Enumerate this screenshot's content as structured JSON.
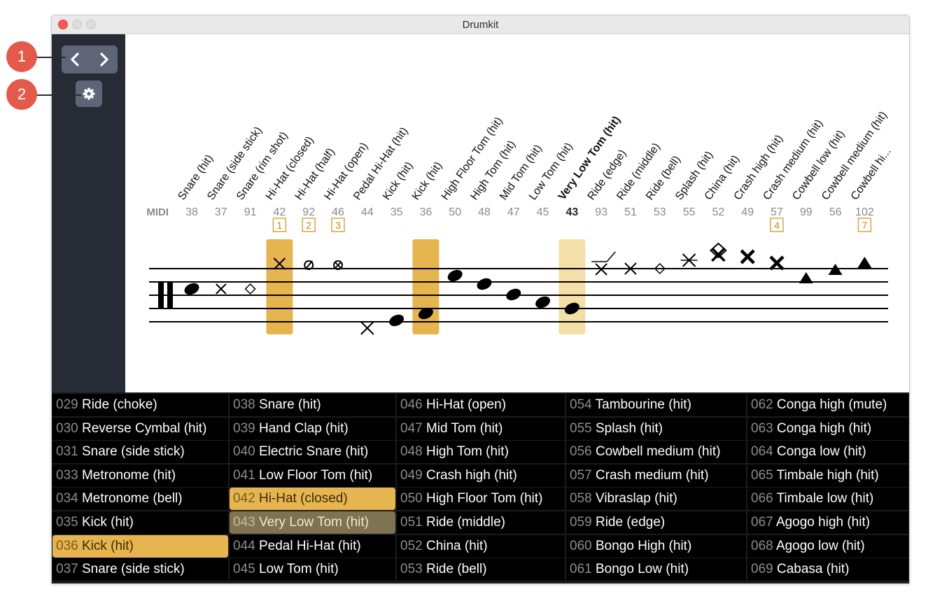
{
  "window": {
    "title": "Drumkit"
  },
  "callouts": [
    "1",
    "2"
  ],
  "sidebar": {
    "prev_icon": "chevron-left-icon",
    "next_icon": "chevron-right-icon",
    "settings_icon": "gear-icon"
  },
  "notation": {
    "midi_label": "MIDI",
    "columns": [
      {
        "name": "Snare (hit)",
        "midi": "38"
      },
      {
        "name": "Snare (side stick)",
        "midi": "37"
      },
      {
        "name": "Snare (rim shot)",
        "midi": "91"
      },
      {
        "name": "Hi-Hat (closed)",
        "midi": "42",
        "badge": "1"
      },
      {
        "name": "Hi-Hat (half)",
        "midi": "92",
        "badge": "2"
      },
      {
        "name": "Hi-Hat (open)",
        "midi": "46",
        "badge": "3"
      },
      {
        "name": "Pedal Hi-Hat (hit)",
        "midi": "44"
      },
      {
        "name": "Kick (hit)",
        "midi": "35"
      },
      {
        "name": "Kick (hit)",
        "midi": "36"
      },
      {
        "name": "High Floor Tom (hit)",
        "midi": "50"
      },
      {
        "name": "High Tom (hit)",
        "midi": "48"
      },
      {
        "name": "Mid Tom (hit)",
        "midi": "47"
      },
      {
        "name": "Low Tom (hit)",
        "midi": "45"
      },
      {
        "name": "Very Low Tom (hit)",
        "midi": "43",
        "bold": true
      },
      {
        "name": "Ride (edge)",
        "midi": "93"
      },
      {
        "name": "Ride (middle)",
        "midi": "51"
      },
      {
        "name": "Ride (bell)",
        "midi": "53"
      },
      {
        "name": "Splash (hit)",
        "midi": "55"
      },
      {
        "name": "China (hit)",
        "midi": "52"
      },
      {
        "name": "Crash high (hit)",
        "midi": "49"
      },
      {
        "name": "Crash medium (hit)",
        "midi": "57",
        "badge": "4"
      },
      {
        "name": "Cowbell low (hit)",
        "midi": "99"
      },
      {
        "name": "Cowbell medium (hit)",
        "midi": "56"
      },
      {
        "name": "Cowbell hi...",
        "midi": "102",
        "badge": "7"
      }
    ],
    "highlight_color": "#e7b54f",
    "highlight_light_color": "#f5dfa8"
  },
  "grid": {
    "columns": [
      [
        {
          "num": "029",
          "label": "Ride (choke)"
        },
        {
          "num": "030",
          "label": "Reverse Cymbal (hit)"
        },
        {
          "num": "031",
          "label": "Snare (side stick)"
        },
        {
          "num": "033",
          "label": "Metronome (hit)"
        },
        {
          "num": "034",
          "label": "Metronome (bell)"
        },
        {
          "num": "035",
          "label": "Kick (hit)"
        },
        {
          "num": "036",
          "label": "Kick (hit)",
          "state": "selected"
        },
        {
          "num": "037",
          "label": "Snare (side stick)"
        }
      ],
      [
        {
          "num": "038",
          "label": "Snare (hit)"
        },
        {
          "num": "039",
          "label": "Hand Clap (hit)"
        },
        {
          "num": "040",
          "label": "Electric Snare (hit)"
        },
        {
          "num": "041",
          "label": "Low Floor Tom (hit)"
        },
        {
          "num": "042",
          "label": "Hi-Hat (closed)",
          "state": "selected"
        },
        {
          "num": "043",
          "label": "Very Low Tom (hit)",
          "state": "dim"
        },
        {
          "num": "044",
          "label": "Pedal Hi-Hat (hit)"
        },
        {
          "num": "045",
          "label": "Low Tom (hit)"
        }
      ],
      [
        {
          "num": "046",
          "label": "Hi-Hat (open)"
        },
        {
          "num": "047",
          "label": "Mid Tom (hit)"
        },
        {
          "num": "048",
          "label": "High Tom (hit)"
        },
        {
          "num": "049",
          "label": "Crash high (hit)"
        },
        {
          "num": "050",
          "label": "High Floor Tom (hit)"
        },
        {
          "num": "051",
          "label": "Ride (middle)"
        },
        {
          "num": "052",
          "label": "China (hit)"
        },
        {
          "num": "053",
          "label": "Ride (bell)"
        }
      ],
      [
        {
          "num": "054",
          "label": "Tambourine (hit)"
        },
        {
          "num": "055",
          "label": "Splash (hit)"
        },
        {
          "num": "056",
          "label": "Cowbell medium (hit)"
        },
        {
          "num": "057",
          "label": "Crash medium (hit)"
        },
        {
          "num": "058",
          "label": "Vibraslap (hit)"
        },
        {
          "num": "059",
          "label": "Ride (edge)"
        },
        {
          "num": "060",
          "label": "Bongo High (hit)"
        },
        {
          "num": "061",
          "label": "Bongo Low (hit)"
        }
      ],
      [
        {
          "num": "062",
          "label": "Conga high (mute)"
        },
        {
          "num": "063",
          "label": "Conga high (hit)"
        },
        {
          "num": "064",
          "label": "Conga low (hit)"
        },
        {
          "num": "065",
          "label": "Timbale high (hit)"
        },
        {
          "num": "066",
          "label": "Timbale low (hit)"
        },
        {
          "num": "067",
          "label": "Agogo high (hit)"
        },
        {
          "num": "068",
          "label": "Agogo low (hit)"
        },
        {
          "num": "069",
          "label": "Cabasa (hit)"
        }
      ]
    ]
  }
}
